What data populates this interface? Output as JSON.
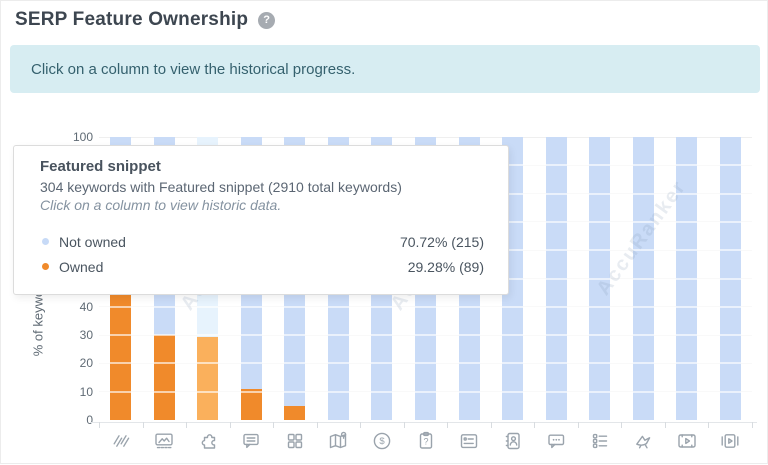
{
  "header": {
    "title": "SERP Feature Ownership",
    "help_glyph": "?"
  },
  "banner": {
    "text": "Click on a column to view the historical progress."
  },
  "tooltip": {
    "title": "Featured snippet",
    "subtitle": "304 keywords with Featured snippet (2910 total keywords)",
    "hint": "Click on a column to view historic data.",
    "rows": [
      {
        "label": "Not owned",
        "value": "70.72% (215)",
        "color": "#c7daf7"
      },
      {
        "label": "Owned",
        "value": "29.28% (89)",
        "color": "#f08a2b"
      }
    ]
  },
  "chart_data": {
    "type": "bar",
    "stacked": true,
    "unit": "percent",
    "title": "SERP Feature Ownership",
    "ylabel": "% of keywords",
    "yticks": [
      0,
      10,
      20,
      30,
      40,
      50,
      60,
      70,
      80,
      90,
      100
    ],
    "ylim": [
      0,
      100
    ],
    "grid": true,
    "legend_position": "tooltip-only",
    "categories": [
      "sitelinks",
      "image-pack",
      "featured-snippet",
      "faq",
      "apps-grid",
      "local-pack",
      "shopping",
      "people-also-ask",
      "knowledge-card",
      "knowledge-panel",
      "reviews",
      "related-list",
      "twitter",
      "video",
      "video-carousel"
    ],
    "series": [
      {
        "name": "Owned",
        "color": "#f08a2b",
        "hover_color": "#fab05c",
        "values": [
          44,
          30,
          29.28,
          11,
          5,
          0,
          0,
          0,
          0,
          0,
          0,
          0,
          0,
          0,
          0
        ]
      },
      {
        "name": "Not owned",
        "color": "#c9dbf7",
        "hover_color": "#e7f3fd",
        "values": [
          56,
          70,
          70.72,
          89,
          95,
          100,
          100,
          100,
          100,
          100,
          100,
          100,
          100,
          100,
          100
        ]
      }
    ],
    "highlighted_column_index": 2
  },
  "watermark": {
    "text": "AccuRanker"
  }
}
